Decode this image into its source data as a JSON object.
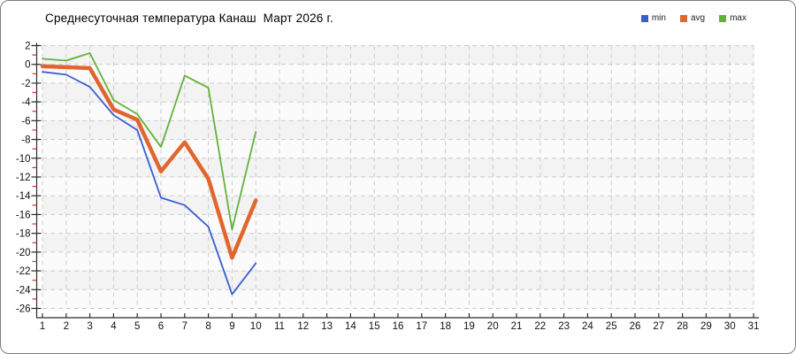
{
  "window": {
    "background": "#ffffff",
    "border_color": "#7d7d7d"
  },
  "chart_data": {
    "type": "line",
    "title": "Среднесуточная температура Канаш  Март 2026 г.",
    "xlabel": "",
    "ylabel": "",
    "x_unit": "day of month",
    "y_unit": "°C",
    "x": [
      1,
      2,
      3,
      4,
      5,
      6,
      7,
      8,
      9,
      10
    ],
    "series": [
      {
        "name": "min",
        "color": "#3a5ed2",
        "width": 1.8,
        "values": [
          -0.8,
          -1.1,
          -2.4,
          -5.4,
          -7.0,
          -14.2,
          -15.0,
          -17.3,
          -24.5,
          -21.2
        ]
      },
      {
        "name": "avg",
        "color": "#e0662e",
        "width": 4.5,
        "values": [
          -0.2,
          -0.3,
          -0.4,
          -4.8,
          -5.9,
          -11.4,
          -8.3,
          -12.2,
          -20.6,
          -14.5
        ]
      },
      {
        "name": "max",
        "color": "#64b13a",
        "width": 1.8,
        "values": [
          0.6,
          0.4,
          1.2,
          -3.8,
          -5.3,
          -8.8,
          -1.2,
          -2.5,
          -17.6,
          -7.2
        ]
      }
    ],
    "ylim": [
      -26,
      2
    ],
    "y_ticks": [
      2,
      0,
      -2,
      -4,
      -6,
      -8,
      -10,
      -12,
      -14,
      -16,
      -18,
      -20,
      -22,
      -24,
      -26
    ],
    "x_ticks": [
      1,
      2,
      3,
      4,
      5,
      6,
      7,
      8,
      9,
      10,
      11,
      12,
      13,
      14,
      15,
      16,
      17,
      18,
      19,
      20,
      21,
      22,
      23,
      24,
      25,
      26,
      27,
      28,
      29,
      30,
      31
    ],
    "grid": "dashed, horizontal and vertical, on",
    "band_colors": [
      "#f3f3f3",
      "#fbfbfb"
    ],
    "gridline_color": "#cbcbcb",
    "axis_color": "#2b2b2b",
    "tick_label_color": "#111111",
    "minor_tick_color": "#c03a2b",
    "legend_position": "top-right",
    "legend": [
      "min",
      "avg",
      "max"
    ]
  }
}
